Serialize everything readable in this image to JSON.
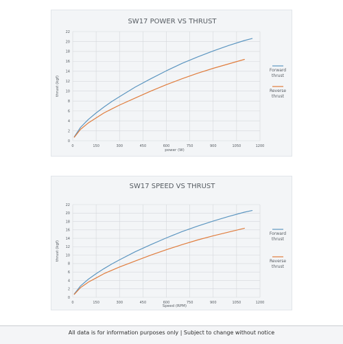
{
  "footer": {
    "text": "All data is for information purposes only | Subject to change without notice"
  },
  "colors": {
    "forward": "#5b95c0",
    "reverse": "#e07c3c",
    "background": "#f3f5f7"
  },
  "chart_data": [
    {
      "type": "line",
      "title": "SW17 POWER VS THRUST",
      "xlabel": "power (W)",
      "ylabel": "thrust (kgf)",
      "xlim": [
        0,
        1200
      ],
      "ylim": [
        0,
        22
      ],
      "x_ticks": [
        "0",
        "150",
        "300",
        "450",
        "600",
        "750",
        "900",
        "1050",
        "1200"
      ],
      "y_ticks": [
        "0",
        "2",
        "4",
        "6",
        "8",
        "10",
        "12",
        "14",
        "16",
        "18",
        "20",
        "22"
      ],
      "grid": true,
      "legend_position": "right",
      "series": [
        {
          "name": "Forward thrust",
          "color": "#5b95c0",
          "x": [
            10,
            50,
            100,
            150,
            200,
            250,
            300,
            400,
            500,
            600,
            700,
            800,
            900,
            1000,
            1100,
            1150
          ],
          "y": [
            0.8,
            2.7,
            4.3,
            5.6,
            6.8,
            7.9,
            8.9,
            10.8,
            12.5,
            14.1,
            15.6,
            16.9,
            18.1,
            19.2,
            20.2,
            20.6
          ]
        },
        {
          "name": "Reverse thrust",
          "color": "#e07c3c",
          "x": [
            10,
            50,
            100,
            150,
            200,
            250,
            300,
            400,
            500,
            600,
            700,
            800,
            900,
            1000,
            1100
          ],
          "y": [
            0.7,
            2.3,
            3.6,
            4.6,
            5.6,
            6.4,
            7.2,
            8.6,
            10.0,
            11.3,
            12.5,
            13.6,
            14.6,
            15.5,
            16.4
          ]
        }
      ]
    },
    {
      "type": "line",
      "title": "SW17 SPEED VS THRUST",
      "xlabel": "Speed (RPM)",
      "ylabel": "thrust (kgf)",
      "xlim": [
        0,
        1200
      ],
      "ylim": [
        0,
        22
      ],
      "x_ticks": [
        "0",
        "150",
        "300",
        "450",
        "600",
        "750",
        "900",
        "1050",
        "1200"
      ],
      "y_ticks": [
        "0",
        "2",
        "4",
        "6",
        "8",
        "10",
        "12",
        "14",
        "16",
        "18",
        "20",
        "22"
      ],
      "grid": true,
      "legend_position": "right",
      "series": [
        {
          "name": "Forward thrust",
          "color": "#5b95c0",
          "x": [
            10,
            50,
            100,
            150,
            200,
            250,
            300,
            400,
            500,
            600,
            700,
            800,
            900,
            1000,
            1100,
            1150
          ],
          "y": [
            0.8,
            2.7,
            4.3,
            5.6,
            6.8,
            7.9,
            8.9,
            10.8,
            12.5,
            14.1,
            15.6,
            16.9,
            18.1,
            19.2,
            20.2,
            20.6
          ]
        },
        {
          "name": "Reverse thrust",
          "color": "#e07c3c",
          "x": [
            10,
            50,
            100,
            150,
            200,
            250,
            300,
            400,
            500,
            600,
            700,
            800,
            900,
            1000,
            1100
          ],
          "y": [
            0.7,
            2.3,
            3.6,
            4.6,
            5.6,
            6.4,
            7.2,
            8.6,
            10.0,
            11.3,
            12.5,
            13.6,
            14.6,
            15.5,
            16.4
          ]
        }
      ]
    }
  ]
}
